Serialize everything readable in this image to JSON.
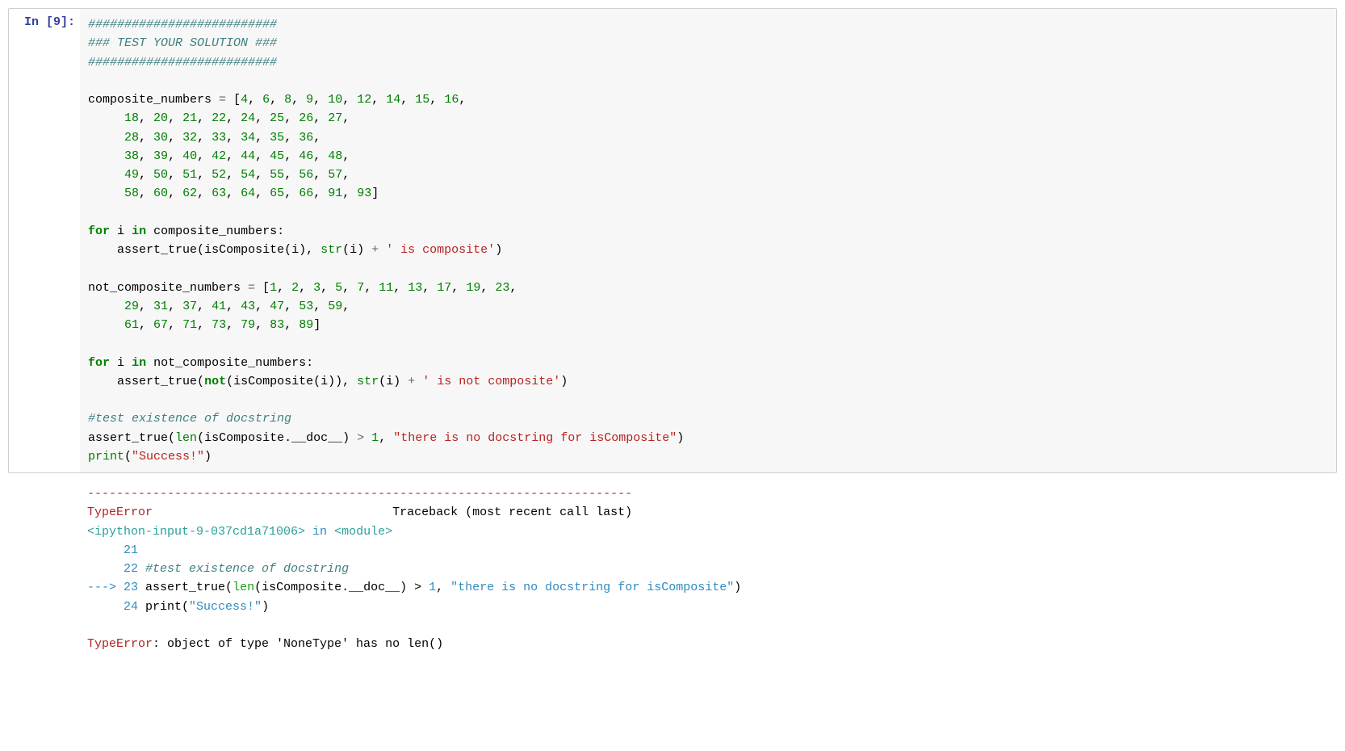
{
  "prompt": "In [9]:",
  "code": {
    "c1": "##########################",
    "c2": "### TEST YOUR SOLUTION ###",
    "c3": "##########################",
    "var1": "composite_numbers",
    "eq": " = ",
    "nums_comp_l1": "[4, 6, 8, 9, 10, 12, 14, 15, 16,",
    "nums_comp_l2": "18, 20, 21, 22, 24, 25, 26, 27,",
    "nums_comp_l3": "28, 30, 32, 33, 34, 35, 36,",
    "nums_comp_l4": "38, 39, 40, 42, 44, 45, 46, 48,",
    "nums_comp_l5": "49, 50, 51, 52, 54, 55, 56, 57,",
    "nums_comp_l6": "58, 60, 62, 63, 64, 65, 66, 91, 93]",
    "for": "for",
    "i": "i",
    "in": "in",
    "colon": ":",
    "assert_true": "assert_true",
    "isComp": "isComposite",
    "str": "str",
    "plus": " + ",
    "s1": "' is composite'",
    "var2": "not_composite_numbers",
    "nums_nc_l1": "[1, 2, 3, 5, 7, 11, 13, 17, 19, 23,",
    "nums_nc_l2": "29, 31, 37, 41, 43, 47, 53, 59,",
    "nums_nc_l3": "61, 67, 71, 73, 79, 83, 89]",
    "not": "not",
    "s2": "' is not composite'",
    "c4": "#test existence of docstring",
    "len": "len",
    "doc": "__doc__",
    "gt": " > ",
    "one": "1",
    "comma": ", ",
    "s3": "\"there is no docstring for isComposite\"",
    "print": "print",
    "s4": "\"Success!\"",
    "lp": "(",
    "rp": ")",
    "dot": "."
  },
  "traceback": {
    "sep": "---------------------------------------------------------------------------",
    "err_type": "TypeError",
    "trace_label": "Traceback (most recent call last)",
    "file": "<ipython-input-9-037cd1a71006>",
    "in": " in ",
    "module": "<module>",
    "l21": "21",
    "l22": "22 ",
    "l22_comment": "#test existence of docstring",
    "arrow": "---> ",
    "l23": "23 ",
    "l23_text1": "assert_true(",
    "l23_len": "len",
    "l23_text2": "(isComposite.__doc__) > ",
    "l23_one": "1",
    "l23_comma": ", ",
    "l23_str": "\"there is no docstring for isComposite\"",
    "l23_text3": ")",
    "l24": "24 ",
    "l24_print": "print(",
    "l24_str": "\"Success!\"",
    "l24_rp": ")",
    "final_err": "TypeError",
    "final_msg": ": object of type 'NoneType' has no len()"
  },
  "colors": {
    "comment": "#408080",
    "keyword": "#008000",
    "operator": "#666666",
    "string": "#BA2121",
    "error": "#b22222",
    "traceback_file": "#2aa198",
    "traceback_green": "#13a10e",
    "traceback_blue": "#2e8bc0",
    "bg_input": "#f7f7f7",
    "border": "#cfcfcf",
    "prompt_in": "#303f9f"
  }
}
